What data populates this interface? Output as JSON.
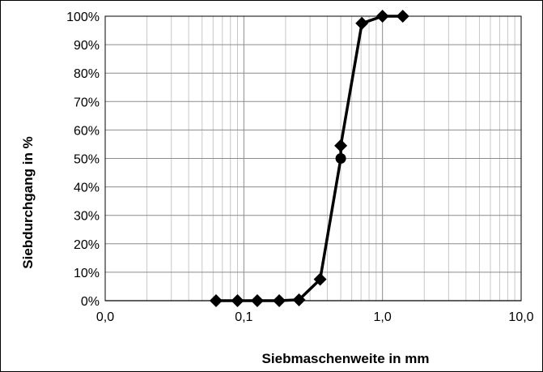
{
  "chart_data": {
    "type": "line",
    "title": "",
    "xlabel": "Siebmaschenweite in mm",
    "ylabel": "Siebdurchgang in %",
    "x_scale": "log",
    "xlim": [
      0.01,
      10
    ],
    "ylim": [
      0,
      100
    ],
    "grid": true,
    "x_ticks": [
      {
        "value": 0.01,
        "label": "0,0"
      },
      {
        "value": 0.1,
        "label": "0,1"
      },
      {
        "value": 1,
        "label": "1,0"
      },
      {
        "value": 10,
        "label": "10,0"
      }
    ],
    "y_ticks": [
      {
        "value": 0,
        "label": "0%"
      },
      {
        "value": 10,
        "label": "10%"
      },
      {
        "value": 20,
        "label": "20%"
      },
      {
        "value": 30,
        "label": "30%"
      },
      {
        "value": 40,
        "label": "40%"
      },
      {
        "value": 50,
        "label": "50%"
      },
      {
        "value": 60,
        "label": "60%"
      },
      {
        "value": 70,
        "label": "70%"
      },
      {
        "value": 80,
        "label": "80%"
      },
      {
        "value": 90,
        "label": "90%"
      },
      {
        "value": 100,
        "label": "100%"
      }
    ],
    "series": [
      {
        "x": [
          0.063,
          0.09,
          0.125,
          0.18,
          0.25,
          0.355,
          0.5,
          0.5,
          0.71,
          1.0,
          1.4
        ],
        "y": [
          0,
          0,
          0,
          0,
          0.3,
          7.5,
          50,
          54.5,
          97.5,
          100,
          100
        ],
        "markers": [
          "diamond",
          "diamond",
          "diamond",
          "diamond",
          "diamond",
          "diamond",
          "circle",
          "diamond",
          "diamond",
          "diamond",
          "diamond"
        ],
        "color": "#000000"
      }
    ]
  }
}
